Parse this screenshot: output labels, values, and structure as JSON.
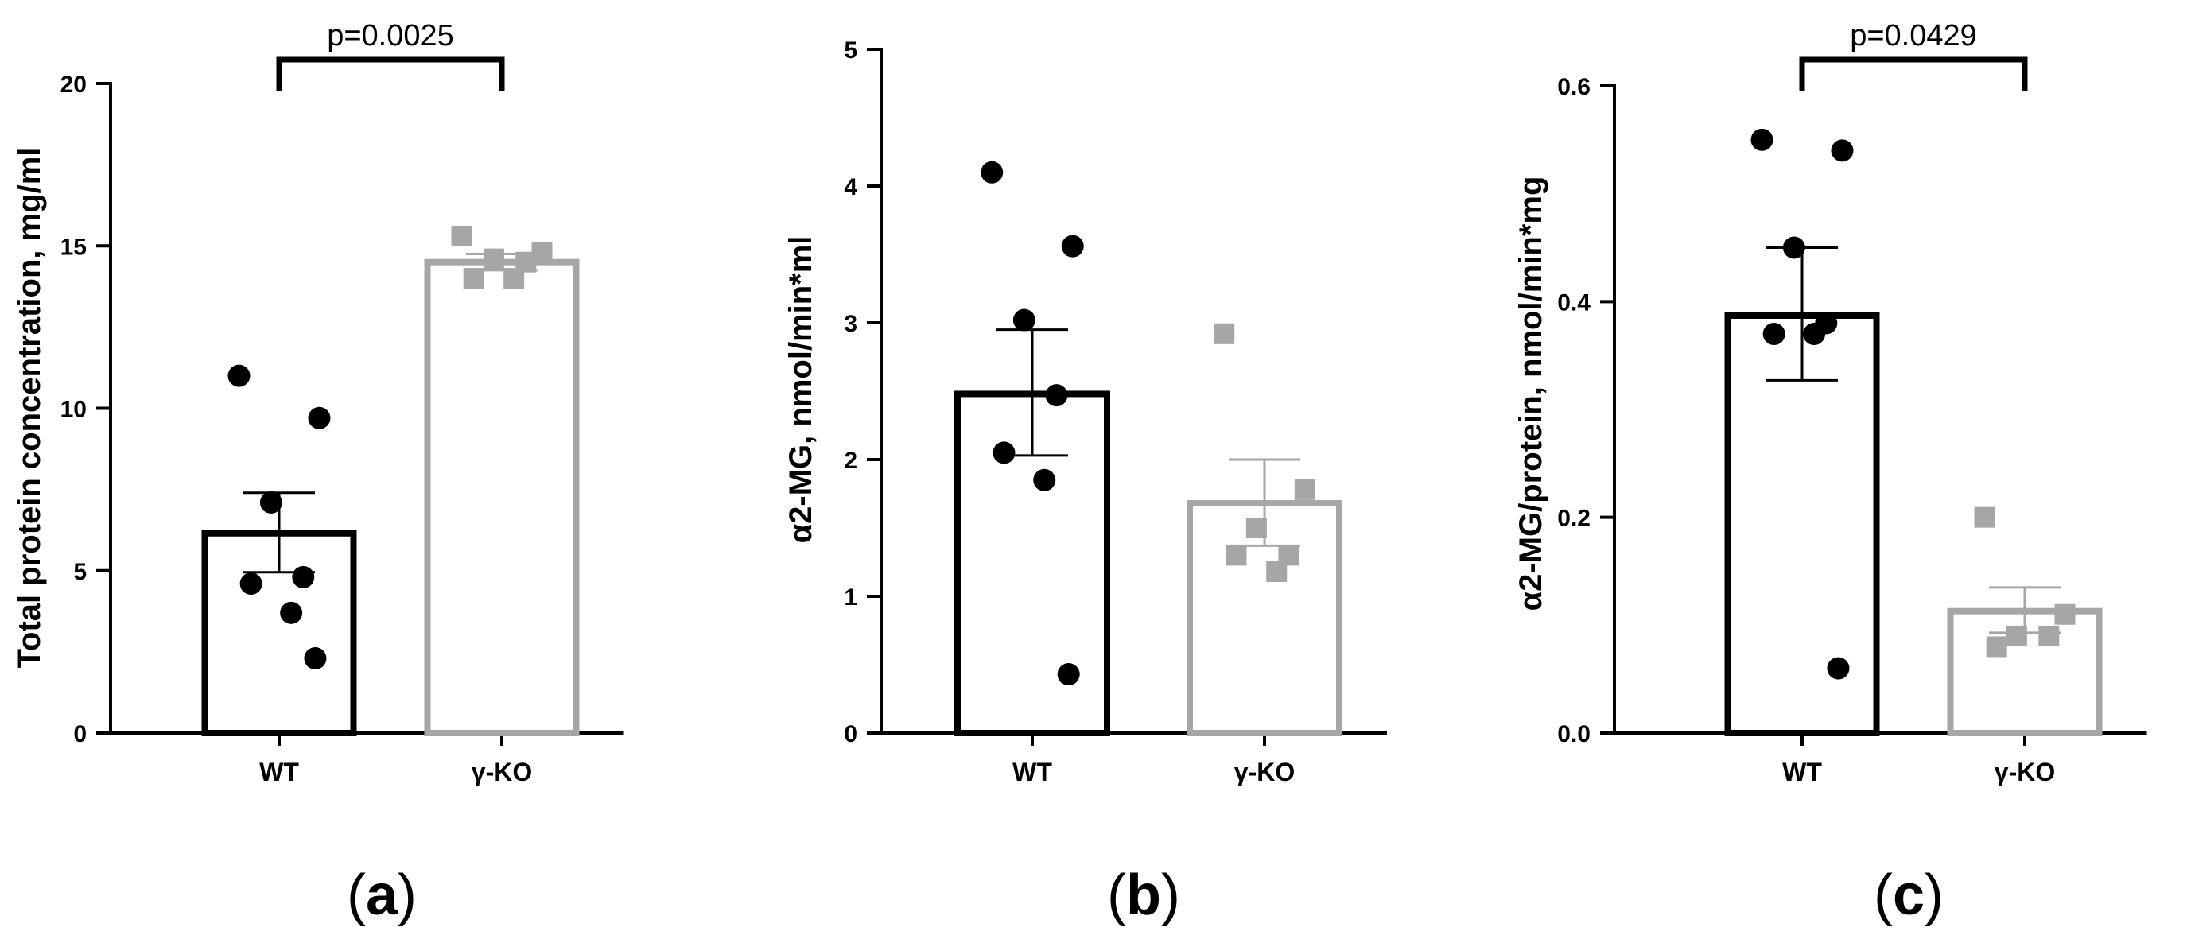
{
  "chart_data": [
    {
      "type": "bar",
      "panel_label": "a",
      "categories": [
        "WT",
        "γ-KO"
      ],
      "ylabel": "Total protein concentration, mg/ml",
      "ylim": [
        0,
        20
      ],
      "yticks": [
        0,
        5,
        10,
        15,
        20
      ],
      "ytick_labels": [
        "0",
        "5",
        "10",
        "15",
        "20"
      ],
      "series": [
        {
          "name": "WT",
          "color": "#000000",
          "marker": "circle",
          "mean": 6.15,
          "sem_low": 4.95,
          "sem_high": 7.4,
          "points": [
            11.0,
            9.7,
            7.1,
            4.8,
            4.6,
            3.7,
            2.3
          ]
        },
        {
          "name": "γ-KO",
          "color": "#a6a6a6",
          "marker": "square",
          "mean": 14.5,
          "sem_low": 14.25,
          "sem_high": 14.75,
          "points": [
            15.3,
            14.8,
            14.6,
            14.5,
            14.0,
            14.0
          ]
        }
      ],
      "significance": {
        "text": "p=0.0025",
        "between": [
          "WT",
          "γ-KO"
        ]
      }
    },
    {
      "type": "bar",
      "panel_label": "b",
      "categories": [
        "WT",
        "γ-KO"
      ],
      "ylabel": "α2-MG, nmol/min*ml",
      "ylim": [
        0,
        5
      ],
      "yticks": [
        0,
        1,
        2,
        3,
        4,
        5
      ],
      "ytick_labels": [
        "0",
        "1",
        "2",
        "3",
        "4",
        "5"
      ],
      "series": [
        {
          "name": "WT",
          "color": "#000000",
          "marker": "circle",
          "mean": 2.48,
          "sem_low": 2.03,
          "sem_high": 2.95,
          "points": [
            4.1,
            3.56,
            3.02,
            2.47,
            2.05,
            1.85,
            0.43
          ]
        },
        {
          "name": "γ-KO",
          "color": "#a6a6a6",
          "marker": "square",
          "mean": 1.68,
          "sem_low": 1.37,
          "sem_high": 2.0,
          "points": [
            2.92,
            1.78,
            1.5,
            1.3,
            1.3,
            1.18
          ]
        }
      ],
      "significance": null
    },
    {
      "type": "bar",
      "panel_label": "c",
      "categories": [
        "WT",
        "γ-KO"
      ],
      "ylabel": "α2-MG/protein, nmol/min*mg",
      "ylim": [
        0,
        0.6
      ],
      "yticks": [
        0,
        0.2,
        0.4,
        0.6
      ],
      "ytick_labels": [
        "0.0",
        "0.2",
        "0.4",
        "0.6"
      ],
      "series": [
        {
          "name": "WT",
          "color": "#000000",
          "marker": "circle",
          "mean": 0.387,
          "sem_low": 0.327,
          "sem_high": 0.45,
          "points": [
            0.55,
            0.54,
            0.45,
            0.38,
            0.37,
            0.37,
            0.06
          ]
        },
        {
          "name": "γ-KO",
          "color": "#a6a6a6",
          "marker": "square",
          "mean": 0.113,
          "sem_low": 0.093,
          "sem_high": 0.135,
          "points": [
            0.2,
            0.11,
            0.09,
            0.09,
            0.08
          ]
        }
      ],
      "significance": {
        "text": "p=0.0429",
        "between": [
          "WT",
          "γ-KO"
        ]
      }
    }
  ]
}
